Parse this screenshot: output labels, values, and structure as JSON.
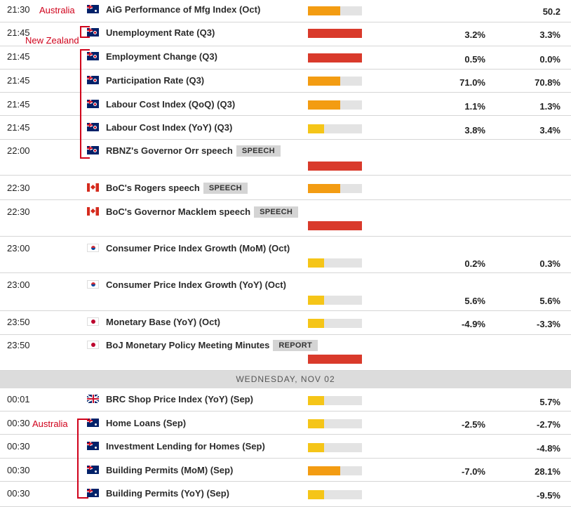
{
  "colors": {
    "high": "#d93a2b",
    "medium": "#f39c12",
    "low": "#f5c518",
    "annotation": "#d0021b"
  },
  "annotations": {
    "australia_top": "Australia",
    "new_zealand": "New Zealand",
    "australia_bottom": "Australia"
  },
  "day_header": "WEDNESDAY, NOV 02",
  "events": [
    {
      "time": "21:30",
      "flag": "au",
      "name": "AiG Performance of Mfg Index (Oct)",
      "badge": "",
      "impact": "medium",
      "impact_level": 0.6,
      "actual": "",
      "previous": "50.2"
    },
    {
      "time": "21:45",
      "flag": "nz",
      "name": "Unemployment Rate (Q3)",
      "badge": "",
      "impact": "high",
      "impact_level": 1.0,
      "actual": "3.2%",
      "previous": "3.3%"
    },
    {
      "time": "21:45",
      "flag": "nz",
      "name": "Employment Change (Q3)",
      "badge": "",
      "impact": "high",
      "impact_level": 1.0,
      "actual": "0.5%",
      "previous": "0.0%"
    },
    {
      "time": "21:45",
      "flag": "nz",
      "name": "Participation Rate (Q3)",
      "badge": "",
      "impact": "medium",
      "impact_level": 0.6,
      "actual": "71.0%",
      "previous": "70.8%"
    },
    {
      "time": "21:45",
      "flag": "nz",
      "name": "Labour Cost Index (QoQ) (Q3)",
      "badge": "",
      "impact": "medium",
      "impact_level": 0.6,
      "actual": "1.1%",
      "previous": "1.3%"
    },
    {
      "time": "21:45",
      "flag": "nz",
      "name": "Labour Cost Index (YoY) (Q3)",
      "badge": "",
      "impact": "low",
      "impact_level": 0.3,
      "actual": "3.8%",
      "previous": "3.4%"
    },
    {
      "time": "22:00",
      "flag": "nz",
      "name": "RBNZ's Governor Orr speech",
      "badge": "SPEECH",
      "impact": "high",
      "impact_level": 1.0,
      "actual": "",
      "previous": ""
    },
    {
      "time": "22:30",
      "flag": "ca",
      "name": "BoC's Rogers speech",
      "badge": "SPEECH",
      "impact": "medium",
      "impact_level": 0.6,
      "actual": "",
      "previous": ""
    },
    {
      "time": "22:30",
      "flag": "ca",
      "name": "BoC's Governor Macklem speech",
      "badge": "SPEECH",
      "impact": "high",
      "impact_level": 1.0,
      "actual": "",
      "previous": ""
    },
    {
      "time": "23:00",
      "flag": "kr",
      "name": "Consumer Price Index Growth (MoM) (Oct)",
      "badge": "",
      "impact": "low",
      "impact_level": 0.3,
      "actual": "0.2%",
      "previous": "0.3%"
    },
    {
      "time": "23:00",
      "flag": "kr",
      "name": "Consumer Price Index Growth (YoY) (Oct)",
      "badge": "",
      "impact": "low",
      "impact_level": 0.3,
      "actual": "5.6%",
      "previous": "5.6%"
    },
    {
      "time": "23:50",
      "flag": "jp",
      "name": "Monetary Base (YoY) (Oct)",
      "badge": "",
      "impact": "low",
      "impact_level": 0.3,
      "actual": "-4.9%",
      "previous": "-3.3%"
    },
    {
      "time": "23:50",
      "flag": "jp",
      "name": "BoJ Monetary Policy Meeting Minutes",
      "badge": "REPORT",
      "impact": "high",
      "impact_level": 1.0,
      "actual": "",
      "previous": ""
    },
    {
      "time": "00:01",
      "flag": "uk",
      "name": "BRC Shop Price Index (YoY) (Sep)",
      "badge": "",
      "impact": "low",
      "impact_level": 0.3,
      "actual": "",
      "previous": "5.7%"
    },
    {
      "time": "00:30",
      "flag": "au",
      "name": "Home Loans (Sep)",
      "badge": "",
      "impact": "low",
      "impact_level": 0.3,
      "actual": "-2.5%",
      "previous": "-2.7%"
    },
    {
      "time": "00:30",
      "flag": "au",
      "name": "Investment Lending for Homes (Sep)",
      "badge": "",
      "impact": "low",
      "impact_level": 0.3,
      "actual": "",
      "previous": "-4.8%"
    },
    {
      "time": "00:30",
      "flag": "au",
      "name": "Building Permits (MoM) (Sep)",
      "badge": "",
      "impact": "medium",
      "impact_level": 0.6,
      "actual": "-7.0%",
      "previous": "28.1%"
    },
    {
      "time": "00:30",
      "flag": "au",
      "name": "Building Permits (YoY) (Sep)",
      "badge": "",
      "impact": "low",
      "impact_level": 0.3,
      "actual": "",
      "previous": "-9.5%"
    }
  ]
}
